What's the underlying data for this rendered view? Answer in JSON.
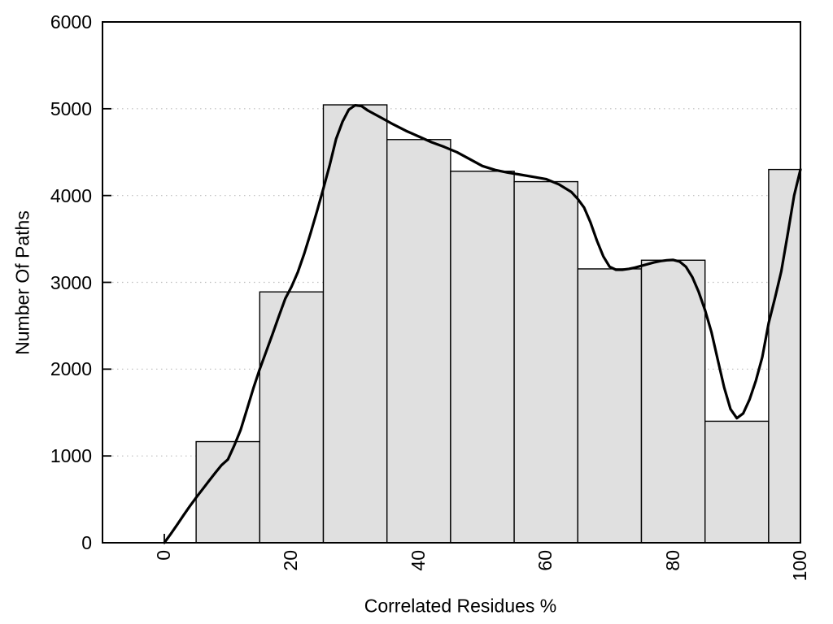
{
  "chart_data": {
    "type": "bar",
    "subtype": "histogram-with-smoothed-curve",
    "title": "",
    "xlabel": "Correlated Residues %",
    "ylabel": "Number Of Paths",
    "xlim": [
      -10,
      100
    ],
    "ylim": [
      0,
      6000
    ],
    "x_ticks": [
      0,
      20,
      40,
      60,
      80,
      100
    ],
    "x_tick_labels": [
      "0",
      "20",
      "40",
      "60",
      "80",
      "100"
    ],
    "y_ticks": [
      0,
      1000,
      2000,
      3000,
      4000,
      5000,
      6000
    ],
    "y_tick_labels": [
      "0",
      "1000",
      "2000",
      "3000",
      "4000",
      "5000",
      "6000"
    ],
    "grid": "horizontal dotted lines at 1000-5000",
    "legend": "none",
    "bars": [
      {
        "from": 5,
        "to": 15,
        "value": 1165
      },
      {
        "from": 15,
        "to": 25,
        "value": 2890
      },
      {
        "from": 25,
        "to": 35,
        "value": 5045
      },
      {
        "from": 35,
        "to": 45,
        "value": 4645
      },
      {
        "from": 45,
        "to": 55,
        "value": 4280
      },
      {
        "from": 55,
        "to": 65,
        "value": 4160
      },
      {
        "from": 65,
        "to": 75,
        "value": 3155
      },
      {
        "from": 75,
        "to": 85,
        "value": 3255
      },
      {
        "from": 85,
        "to": 95,
        "value": 1400
      },
      {
        "from": 95,
        "to": 100,
        "value": 4300
      }
    ],
    "series": [
      {
        "name": "smoothed curve",
        "type": "line",
        "points": [
          [
            0,
            0
          ],
          [
            1,
            100
          ],
          [
            2,
            205
          ],
          [
            3,
            315
          ],
          [
            4,
            420
          ],
          [
            5,
            520
          ],
          [
            6,
            615
          ],
          [
            7,
            710
          ],
          [
            8,
            805
          ],
          [
            9,
            895
          ],
          [
            10,
            960
          ],
          [
            11,
            1120
          ],
          [
            12,
            1300
          ],
          [
            13,
            1540
          ],
          [
            14,
            1780
          ],
          [
            15,
            2000
          ],
          [
            16,
            2200
          ],
          [
            17,
            2400
          ],
          [
            18,
            2610
          ],
          [
            19,
            2810
          ],
          [
            20,
            2950
          ],
          [
            21,
            3120
          ],
          [
            22,
            3330
          ],
          [
            23,
            3570
          ],
          [
            24,
            3820
          ],
          [
            25,
            4080
          ],
          [
            26,
            4350
          ],
          [
            27,
            4650
          ],
          [
            28,
            4850
          ],
          [
            29,
            4990
          ],
          [
            30,
            5040
          ],
          [
            31,
            5030
          ],
          [
            32,
            4980
          ],
          [
            34,
            4900
          ],
          [
            36,
            4820
          ],
          [
            38,
            4745
          ],
          [
            40,
            4680
          ],
          [
            42,
            4615
          ],
          [
            44,
            4560
          ],
          [
            46,
            4500
          ],
          [
            48,
            4420
          ],
          [
            50,
            4340
          ],
          [
            52,
            4295
          ],
          [
            54,
            4265
          ],
          [
            56,
            4240
          ],
          [
            58,
            4215
          ],
          [
            60,
            4190
          ],
          [
            62,
            4130
          ],
          [
            64,
            4040
          ],
          [
            65,
            3960
          ],
          [
            66,
            3860
          ],
          [
            67,
            3690
          ],
          [
            68,
            3480
          ],
          [
            69,
            3300
          ],
          [
            70,
            3180
          ],
          [
            71,
            3145
          ],
          [
            72,
            3145
          ],
          [
            73,
            3155
          ],
          [
            74,
            3170
          ],
          [
            75,
            3190
          ],
          [
            76,
            3210
          ],
          [
            77,
            3230
          ],
          [
            78,
            3245
          ],
          [
            79,
            3255
          ],
          [
            80,
            3258
          ],
          [
            81,
            3240
          ],
          [
            82,
            3180
          ],
          [
            83,
            3060
          ],
          [
            84,
            2890
          ],
          [
            85,
            2680
          ],
          [
            86,
            2430
          ],
          [
            87,
            2110
          ],
          [
            88,
            1790
          ],
          [
            89,
            1540
          ],
          [
            90,
            1435
          ],
          [
            91,
            1490
          ],
          [
            92,
            1650
          ],
          [
            93,
            1870
          ],
          [
            94,
            2140
          ],
          [
            95,
            2530
          ],
          [
            96,
            2820
          ],
          [
            97,
            3130
          ],
          [
            98,
            3560
          ],
          [
            99,
            4000
          ],
          [
            100,
            4300
          ]
        ]
      }
    ],
    "colors": {
      "background": "#ffffff",
      "bar_fill": "#e0e0e0",
      "bar_border": "#000000",
      "curve": "#000000",
      "grid": "#bdbdbd",
      "axis": "#000000",
      "text": "#000000"
    }
  }
}
